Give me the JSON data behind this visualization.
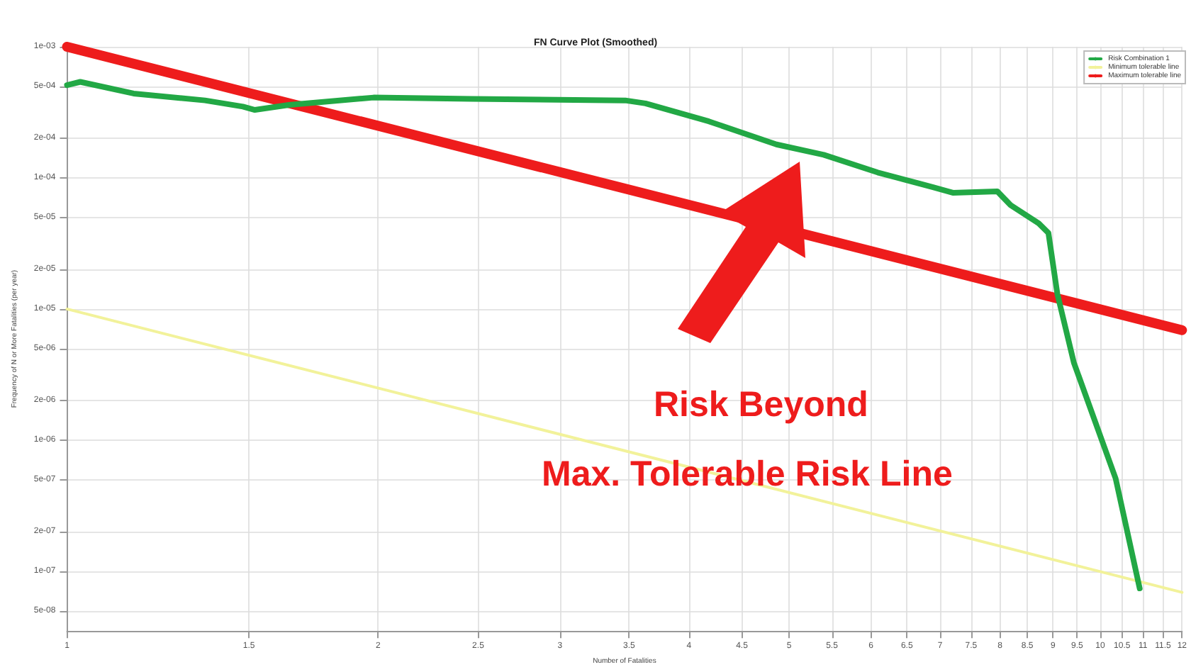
{
  "chart_data": {
    "type": "line",
    "title": "FN Curve Plot (Smoothed)",
    "xlabel": "Number of Fatalities",
    "ylabel": "Frequency of N or More Fatalities (per year)",
    "log": "xy",
    "grid": true,
    "legend": "top right",
    "marker": "none",
    "line_style": "solid",
    "xlim": [
      1,
      12
    ],
    "xticks": [
      1,
      1.5,
      2,
      2.5,
      3,
      3.5,
      4,
      4.5,
      5,
      5.5,
      6,
      6.5,
      7,
      7.5,
      8,
      8.5,
      9,
      9.5,
      10,
      10.5,
      11,
      11.5,
      12
    ],
    "ylim": [
      3.5e-08,
      0.001
    ],
    "yticks": [
      {
        "value": 0.001,
        "label": "1e-03"
      },
      {
        "value": 0.0005,
        "label": "5e-04"
      },
      {
        "value": 0.0002,
        "label": "2e-04"
      },
      {
        "value": 0.0001,
        "label": "1e-04"
      },
      {
        "value": 5e-05,
        "label": "5e-05"
      },
      {
        "value": 2e-05,
        "label": "2e-05"
      },
      {
        "value": 1e-05,
        "label": "1e-05"
      },
      {
        "value": 5e-06,
        "label": "5e-06"
      },
      {
        "value": 2e-06,
        "label": "2e-06"
      },
      {
        "value": 1e-06,
        "label": "1e-06"
      },
      {
        "value": 5e-07,
        "label": "5e-07"
      },
      {
        "value": 2e-07,
        "label": "2e-07"
      },
      {
        "value": 1e-07,
        "label": "1e-07"
      },
      {
        "value": 5e-08,
        "label": "5e-08"
      }
    ],
    "series": [
      {
        "name": "Risk Combination 1",
        "color": "#22a845",
        "x": [
          1,
          1.03,
          1.16,
          1.36,
          1.48,
          1.52,
          1.64,
          1.98,
          2.46,
          3.47,
          3.63,
          4.18,
          4.86,
          5.4,
          6.09,
          6.89,
          7.2,
          7.95,
          8.19,
          8.72,
          8.91,
          9.09,
          9.43,
          10.35,
          10.92
        ],
        "values": [
          0.00051,
          0.00054,
          0.00044,
          0.00039,
          0.00035,
          0.00033,
          0.00036,
          0.00041,
          0.0004,
          0.00039,
          0.00037,
          0.00027,
          0.00018,
          0.00015,
          0.00011,
          8.5e-05,
          7.7e-05,
          7.9e-05,
          6.2e-05,
          4.5e-05,
          3.8e-05,
          1.3e-05,
          3.9e-06,
          5.1e-07,
          7.4e-08
        ]
      },
      {
        "name": "Minimum tolerable line",
        "color": "#f2f29a",
        "x": [
          1,
          12
        ],
        "values": [
          1e-05,
          6.9e-08
        ]
      },
      {
        "name": "Maximum tolerable line",
        "color": "#ee1c1c",
        "x": [
          1,
          12
        ],
        "values": [
          0.001,
          6.9e-06
        ]
      }
    ],
    "annotations": [
      "Risk Beyond",
      "Max. Tolerable Risk Line"
    ]
  }
}
